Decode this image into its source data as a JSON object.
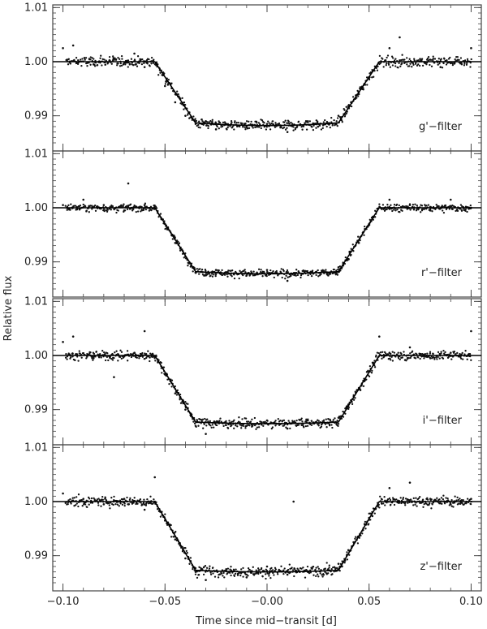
{
  "chart_data": [
    {
      "type": "scatter",
      "panel": "g'",
      "label": "g'−filter",
      "xlim": [
        -0.105,
        0.105
      ],
      "ylim": [
        0.9835,
        1.0105
      ],
      "yticks": [
        0.99,
        1.0,
        1.01
      ],
      "ytick_labels": [
        "0.99",
        "1.00",
        "1.01"
      ],
      "transit": {
        "t1": 0.055,
        "t2": 0.035,
        "depth": 0.0118,
        "curvature": 0.0005,
        "noise": 0.0012
      },
      "series": [
        {
          "style": "line",
          "x": [
            -0.105,
            -0.075,
            -0.055,
            -0.05,
            -0.045,
            -0.04,
            -0.035,
            -0.03,
            -0.02,
            -0.01,
            0.0,
            0.01,
            0.02,
            0.03,
            0.035,
            0.04,
            0.045,
            0.05,
            0.055,
            0.075,
            0.105
          ],
          "y": [
            1.0,
            1.0,
            1.0,
            0.9969,
            0.9938,
            0.9906,
            0.9887,
            0.9884,
            0.9882,
            0.9882,
            0.9882,
            0.9882,
            0.9882,
            0.9884,
            0.9887,
            0.9906,
            0.9938,
            0.9969,
            1.0,
            1.0,
            1.0
          ]
        },
        {
          "style": "points",
          "x": [
            -0.1,
            -0.095,
            -0.085,
            -0.075,
            -0.065,
            -0.06,
            -0.05,
            -0.045,
            -0.04,
            -0.035,
            -0.03,
            -0.025,
            -0.02,
            -0.01,
            0.0,
            0.01,
            0.02,
            0.025,
            0.03,
            0.035,
            0.04,
            0.045,
            0.05,
            0.06,
            0.065,
            0.075,
            0.085,
            0.1
          ],
          "y": [
            1.0025,
            1.003,
            0.9995,
            1.0005,
            1.0015,
            0.999,
            0.9955,
            0.9925,
            0.99,
            0.9885,
            0.989,
            0.9875,
            0.9885,
            0.988,
            0.9885,
            0.987,
            0.989,
            0.988,
            0.9885,
            0.99,
            0.9915,
            0.994,
            0.997,
            1.0025,
            1.0045,
            1.0005,
            0.999,
            1.0025
          ]
        }
      ]
    },
    {
      "type": "scatter",
      "panel": "r'",
      "label": "r'−filter",
      "xlim": [
        -0.105,
        0.105
      ],
      "ylim": [
        0.9835,
        1.0105
      ],
      "yticks": [
        0.99,
        1.0,
        1.01
      ],
      "ytick_labels": [
        "0.99",
        "1.00",
        "1.01"
      ],
      "transit": {
        "t1": 0.055,
        "t2": 0.035,
        "depth": 0.0122,
        "curvature": 0.0004,
        "noise": 0.0009
      },
      "series": [
        {
          "style": "line",
          "x": [
            -0.105,
            -0.075,
            -0.055,
            -0.05,
            -0.045,
            -0.04,
            -0.035,
            -0.03,
            -0.02,
            -0.01,
            0.0,
            0.01,
            0.02,
            0.03,
            0.035,
            0.04,
            0.045,
            0.05,
            0.055,
            0.075,
            0.105
          ],
          "y": [
            1.0,
            1.0,
            1.0,
            0.9968,
            0.9935,
            0.9902,
            0.9882,
            0.988,
            0.9879,
            0.9878,
            0.9878,
            0.9878,
            0.9879,
            0.988,
            0.9882,
            0.9902,
            0.9935,
            0.9968,
            1.0,
            1.0,
            1.0
          ]
        },
        {
          "style": "points",
          "x": [
            -0.1,
            -0.09,
            -0.08,
            -0.07,
            -0.06,
            -0.05,
            -0.045,
            -0.04,
            -0.035,
            -0.03,
            -0.025,
            -0.02,
            -0.01,
            0.0,
            0.01,
            0.02,
            0.03,
            0.035,
            0.04,
            0.045,
            0.05,
            0.06,
            0.07,
            0.08,
            0.09,
            0.1,
            -0.068
          ],
          "y": [
            1.0005,
            1.0015,
            1.0005,
            0.9995,
            1.0005,
            0.997,
            0.9935,
            0.991,
            0.988,
            0.9875,
            0.9885,
            0.988,
            0.9875,
            0.9885,
            0.9865,
            0.988,
            0.9875,
            0.989,
            0.9905,
            0.9935,
            0.997,
            1.0015,
            1.0005,
            0.9995,
            1.0015,
            1.0,
            1.0045
          ]
        }
      ]
    },
    {
      "type": "scatter",
      "panel": "i'",
      "label": "i'−filter",
      "xlim": [
        -0.105,
        0.105
      ],
      "ylim": [
        0.9835,
        1.0105
      ],
      "yticks": [
        0.99,
        1.0,
        1.01
      ],
      "ytick_labels": [
        "0.99",
        "1.00",
        "1.01"
      ],
      "transit": {
        "t1": 0.055,
        "t2": 0.035,
        "depth": 0.0126,
        "curvature": 0.0003,
        "noise": 0.0011
      },
      "series": [
        {
          "style": "line",
          "x": [
            -0.105,
            -0.075,
            -0.055,
            -0.05,
            -0.045,
            -0.04,
            -0.035,
            -0.03,
            -0.02,
            -0.01,
            0.0,
            0.01,
            0.02,
            0.03,
            0.035,
            0.04,
            0.045,
            0.05,
            0.055,
            0.075,
            0.105
          ],
          "y": [
            1.0,
            1.0,
            1.0,
            0.9967,
            0.9933,
            0.9899,
            0.9877,
            0.9876,
            0.9875,
            0.9874,
            0.9874,
            0.9874,
            0.9875,
            0.9876,
            0.9877,
            0.9899,
            0.9933,
            0.9967,
            1.0,
            1.0,
            1.0
          ]
        },
        {
          "style": "points",
          "x": [
            -0.1,
            -0.095,
            -0.085,
            -0.075,
            -0.065,
            -0.06,
            -0.05,
            -0.045,
            -0.04,
            -0.035,
            -0.03,
            -0.02,
            -0.01,
            0.0,
            0.01,
            0.02,
            0.03,
            0.035,
            0.04,
            0.045,
            0.05,
            0.055,
            0.06,
            0.07,
            0.08,
            0.09,
            0.1
          ],
          "y": [
            1.0025,
            1.0035,
            0.9995,
            0.996,
            1.0005,
            1.0045,
            0.9965,
            0.993,
            0.99,
            0.987,
            0.9855,
            0.9875,
            0.987,
            0.988,
            0.9865,
            0.988,
            0.9875,
            0.9885,
            0.991,
            0.994,
            0.997,
            1.0035,
            1.0005,
            1.0015,
            0.9995,
            1.0005,
            1.0045
          ]
        }
      ]
    },
    {
      "type": "scatter",
      "panel": "z'",
      "label": "z'−filter",
      "xlim": [
        -0.105,
        0.105
      ],
      "ylim": [
        0.9835,
        1.0105
      ],
      "xticks": [
        -0.1,
        -0.05,
        0.0,
        0.05,
        0.1
      ],
      "xtick_labels": [
        "−0.10",
        "−0.05",
        "−0.00",
        "0.05",
        "0.10"
      ],
      "yticks": [
        0.99,
        1.0,
        1.01
      ],
      "ytick_labels": [
        "0.99",
        "1.00",
        "1.01"
      ],
      "transit": {
        "t1": 0.055,
        "t2": 0.035,
        "depth": 0.013,
        "curvature": 0.0003,
        "noise": 0.0012
      },
      "series": [
        {
          "style": "line",
          "x": [
            -0.105,
            -0.075,
            -0.055,
            -0.05,
            -0.045,
            -0.04,
            -0.035,
            -0.03,
            -0.02,
            -0.01,
            0.0,
            0.01,
            0.02,
            0.03,
            0.035,
            0.04,
            0.045,
            0.05,
            0.055,
            0.075,
            0.105
          ],
          "y": [
            1.0,
            1.0,
            1.0,
            0.9966,
            0.9931,
            0.9896,
            0.9873,
            0.9872,
            0.9871,
            0.987,
            0.987,
            0.987,
            0.9871,
            0.9872,
            0.9873,
            0.9896,
            0.9931,
            0.9966,
            1.0,
            1.0,
            1.0
          ]
        },
        {
          "style": "points",
          "x": [
            -0.1,
            -0.09,
            -0.08,
            -0.07,
            -0.06,
            -0.055,
            -0.05,
            -0.045,
            -0.04,
            -0.035,
            -0.03,
            -0.02,
            -0.01,
            0.0,
            0.01,
            0.02,
            0.03,
            0.035,
            0.04,
            0.045,
            0.05,
            0.06,
            0.07,
            0.08,
            0.09,
            0.1,
            0.013
          ],
          "y": [
            1.0015,
            1.0005,
            0.9995,
            1.0005,
            0.9985,
            1.0045,
            0.9965,
            0.993,
            0.9895,
            0.987,
            0.9855,
            0.9875,
            0.986,
            0.988,
            0.9865,
            0.987,
            0.9875,
            0.9885,
            0.991,
            0.9935,
            0.997,
            1.0025,
            1.0035,
            1.0005,
            0.9995,
            1.0005,
            1.0
          ]
        }
      ]
    }
  ],
  "xlabel": "Time since mid−transit [d]",
  "ylabel": "Relative flux"
}
